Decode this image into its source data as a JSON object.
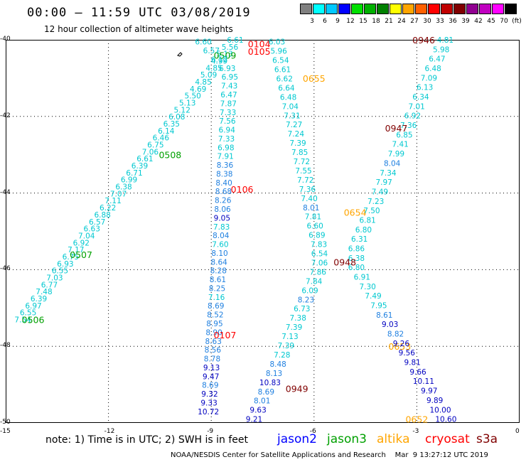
{
  "header": {
    "title": "00:00 – 11:59 UTC 03/08/2019",
    "subtitle": "12 hour collection of altimeter wave heights"
  },
  "colorbar": {
    "swatches": [
      "#808080",
      "#00ffff",
      "#00c8ff",
      "#0000ff",
      "#00e000",
      "#00b000",
      "#008000",
      "#ffff00",
      "#ffa500",
      "#ff6000",
      "#ff0000",
      "#c00000",
      "#800000",
      "#900090",
      "#c000c0",
      "#ff00ff",
      "#000000"
    ],
    "labels": [
      "3",
      "6",
      "9",
      "12",
      "15",
      "18",
      "21",
      "24",
      "27",
      "30",
      "33",
      "36",
      "39",
      "42",
      "45",
      "70",
      "(ft)"
    ]
  },
  "axes": {
    "x_ticks": [
      "-15",
      "-12",
      "-9",
      "-6",
      "-3",
      "0"
    ],
    "y_ticks": [
      "-40",
      "-42",
      "-44",
      "-46",
      "-48",
      "-50"
    ],
    "xlim": [
      -15,
      0
    ],
    "ylim": [
      -50,
      -40
    ]
  },
  "colors": {
    "jason2": "#0000ff",
    "jason3": "#00a000",
    "altika": "#ffa500",
    "cryosat": "#ff0000",
    "s3a": "#800000",
    "cyan": "#00c8d0",
    "navy": "#0000c0"
  },
  "chart_data": {
    "type": "scatter",
    "xlabel": "",
    "ylabel": "",
    "xlim": [
      -15,
      0
    ],
    "ylim": [
      -50,
      -40
    ],
    "grid": true,
    "passes": [
      {
        "name": "jason3",
        "time_labels": [
          {
            "text": "0509",
            "lon": -8.6,
            "lat": -40.4
          },
          {
            "text": "0508",
            "lon": -10.2,
            "lat": -43.0
          },
          {
            "text": "0507",
            "lon": -12.8,
            "lat": -45.6
          },
          {
            "text": "0506",
            "lon": -14.2,
            "lat": -47.3
          }
        ],
        "values": [
          "6.61",
          "5.56",
          "5.13",
          "4.99",
          "4.85",
          "5.09",
          "4.85",
          "4.69",
          "5.50",
          "5.13",
          "5.12",
          "6.08",
          "6.35",
          "6.14",
          "6.46",
          "6.75",
          "7.06",
          "6.61",
          "6.39",
          "6.71",
          "6.99",
          "6.38",
          "7.07",
          "7.11",
          "6.22",
          "6.88",
          "6.57",
          "6.63",
          "7.04",
          "6.92",
          "7.17",
          "6.75",
          "6.93",
          "6.55",
          "7.03",
          "6.77",
          "7.48",
          "6.39",
          "6.97",
          "6.55",
          "7.54"
        ]
      },
      {
        "name": "cryosat",
        "time_labels": [
          {
            "text": "0104",
            "lon": -7.6,
            "lat": -40.1
          },
          {
            "text": "0105",
            "lon": -7.6,
            "lat": -40.3
          },
          {
            "text": "0106",
            "lon": -8.1,
            "lat": -43.9
          },
          {
            "text": "0107",
            "lon": -8.6,
            "lat": -47.7
          }
        ],
        "values": [
          "6.60",
          "6.57",
          "6.12",
          "6.93",
          "6.95",
          "7.43",
          "6.47",
          "7.87",
          "7.33",
          "7.56",
          "6.94",
          "7.33",
          "6.98",
          "7.91",
          "8.36",
          "8.38",
          "8.40",
          "8.68",
          "8.26",
          "8.06",
          "9.05",
          "7.83",
          "8.04",
          "7.60",
          "8.10",
          "8.64",
          "8.28",
          "8.61",
          "8.25",
          "7.16",
          "8.69",
          "8.52",
          "8.95",
          "8.90",
          "8.63",
          "8.56",
          "8.78",
          "9.13",
          "9.47",
          "8.69",
          "9.32",
          "9.33",
          "10.72"
        ]
      },
      {
        "name": "altika",
        "time_labels": [
          {
            "text": "0655",
            "lon": -6.0,
            "lat": -41.0
          },
          {
            "text": "0654",
            "lon": -4.8,
            "lat": -44.5
          },
          {
            "text": "0653",
            "lon": -3.5,
            "lat": -48.0
          },
          {
            "text": "0652",
            "lon": -3.0,
            "lat": -49.9
          }
        ],
        "values": [
          "6.03",
          "5.96",
          "6.54",
          "6.61",
          "6.62",
          "6.64",
          "6.48",
          "7.04",
          "7.31",
          "7.27",
          "7.24",
          "7.39",
          "7.85",
          "7.72",
          "7.55",
          "7.72",
          "7.36",
          "7.40",
          "8.01",
          "7.81",
          "6.60",
          "6.89",
          "7.83",
          "6.54",
          "7.06",
          "7.86",
          "7.84",
          "6.09",
          "8.23",
          "6.73",
          "7.38",
          "7.39",
          "7.13",
          "7.39",
          "7.28",
          "8.48",
          "8.13",
          "10.83",
          "8.69",
          "8.01",
          "9.63",
          "9.21"
        ]
      },
      {
        "name": "s3a",
        "time_labels": [
          {
            "text": "0946",
            "lon": -2.8,
            "lat": -40.0
          },
          {
            "text": "0947",
            "lon": -3.6,
            "lat": -42.3
          },
          {
            "text": "0948",
            "lon": -5.1,
            "lat": -45.8
          },
          {
            "text": "0949",
            "lon": -6.5,
            "lat": -49.1
          }
        ],
        "values": [
          "4.81",
          "5.98",
          "6.47",
          "6.48",
          "7.09",
          "6.13",
          "6.34",
          "7.01",
          "6.92",
          "7.36",
          "6.85",
          "7.41",
          "7.99",
          "8.04",
          "7.34",
          "7.97",
          "7.49",
          "7.23",
          "7.50",
          "6.81",
          "6.80",
          "6.31",
          "6.86",
          "6.38",
          "6.80",
          "6.91",
          "7.30",
          "7.49",
          "7.95",
          "8.61",
          "9.03",
          "8.82",
          "9.26",
          "9.56",
          "9.81",
          "9.66",
          "10.11",
          "9.97",
          "9.89",
          "10.00",
          "10.60"
        ]
      }
    ]
  },
  "legend": [
    "jason2",
    "jason3",
    "altika",
    "cryosat",
    "s3a"
  ],
  "note": "note:  1) Time is in UTC;  2) SWH is in feet",
  "footer": "NOAA/NESDIS Center for Satellite Applications and Research    Mar  9 13:27:12 UTC 2019"
}
